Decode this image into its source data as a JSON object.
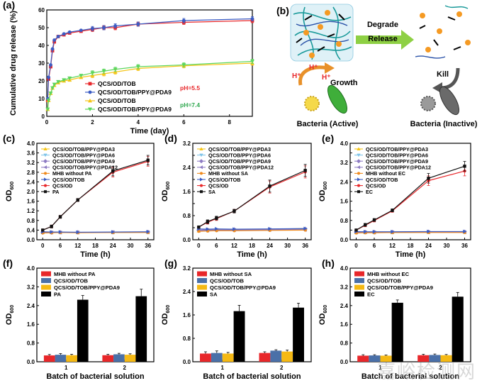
{
  "colors": {
    "red": "#e8272a",
    "blue": "#3b5cc4",
    "yellow": "#f5c518",
    "green": "#5cd65c",
    "orange": "#f08a1c",
    "purple": "#8e7cc3",
    "lightblue": "#7fc4e8",
    "black": "#111111",
    "bar_red": "#e8272a",
    "bar_blue": "#4a70a8",
    "bar_yellow": "#f5b914",
    "bar_black": "#000000",
    "phlabel_red": "#e8272a",
    "phlabel_green": "#2fa84f"
  },
  "schematic": {
    "panel_label": "(b)",
    "degrade": "Degrade",
    "release": "Release",
    "growth": "Growth",
    "kill": "Kill",
    "hplus_1": "H⁺",
    "hplus_2": "H⁺",
    "hplus_3": "H⁺",
    "bacteria_active": "Bacteria (Active)",
    "bacteria_inactive": "Bacteria (Inactive)"
  },
  "watermark": "嘉峪检测网",
  "chart_data": [
    {
      "id": "a",
      "panel_label": "(a)",
      "type": "line",
      "xlabel": "Time (day)",
      "ylabel": "Cumulative drug release (%)",
      "xlim": [
        0,
        9
      ],
      "ylim": [
        0,
        60
      ],
      "xticks": [
        0,
        2,
        4,
        6,
        8
      ],
      "yticks": [
        0,
        10,
        20,
        30,
        40,
        50,
        60
      ],
      "legend_position": "center-right",
      "annotations": [
        {
          "text": "pH=5.5",
          "color": "red"
        },
        {
          "text": "pH=7.4",
          "color": "green"
        }
      ],
      "series": [
        {
          "name": "QCS/OD/TOB",
          "color": "red",
          "marker": "square",
          "x": [
            0.04,
            0.08,
            0.17,
            0.25,
            0.33,
            0.5,
            0.75,
            1,
            1.5,
            2,
            2.5,
            3,
            4,
            6,
            9
          ],
          "y": [
            9,
            21,
            28,
            37,
            42,
            45,
            46,
            47,
            48,
            49,
            50,
            50,
            52,
            53,
            54
          ]
        },
        {
          "name": "QCS/OD/TOB/PPY@PDA9",
          "color": "blue",
          "marker": "circle",
          "x": [
            0.04,
            0.08,
            0.17,
            0.25,
            0.33,
            0.5,
            0.75,
            1,
            1.5,
            2,
            2.5,
            3,
            4,
            6,
            9
          ],
          "y": [
            10,
            22,
            29,
            38,
            43,
            45,
            46.5,
            47.5,
            48.5,
            49.5,
            50,
            51,
            52,
            54,
            55
          ]
        },
        {
          "name": "QCS/OD/TOB",
          "color": "yellow",
          "marker": "triangle-up",
          "x": [
            0.04,
            0.08,
            0.17,
            0.25,
            0.33,
            0.5,
            0.75,
            1,
            1.5,
            2,
            2.5,
            3,
            4,
            6,
            9
          ],
          "y": [
            4,
            9,
            13,
            16,
            17.5,
            19,
            20,
            20.5,
            22,
            23,
            24,
            25,
            27,
            28.5,
            30
          ]
        },
        {
          "name": "QCS/OD/TOB/PPY@PDA9",
          "color": "green",
          "marker": "triangle-down",
          "x": [
            0.04,
            0.08,
            0.17,
            0.25,
            0.33,
            0.5,
            0.75,
            1,
            1.5,
            2,
            2.5,
            3,
            4,
            6,
            9
          ],
          "y": [
            4,
            9,
            13,
            16,
            18,
            19.5,
            20.5,
            21.5,
            23,
            24.5,
            25.5,
            26.5,
            28,
            29,
            31
          ]
        }
      ]
    },
    {
      "id": "c",
      "panel_label": "(c)",
      "type": "line",
      "xlabel": "Time (h)",
      "ylabel": "OD",
      "ylabel_sub": "600",
      "xlim": [
        -2,
        38
      ],
      "ylim": [
        0,
        4.0
      ],
      "xticks": [
        0,
        6,
        12,
        18,
        24,
        30,
        36
      ],
      "yticks": [
        0.0,
        0.4,
        0.8,
        1.2,
        1.6,
        2.0,
        2.4,
        2.8,
        3.2,
        3.6,
        4.0
      ],
      "ytick_labels": [
        "0.0",
        "0.4",
        "0.8",
        "1.2",
        "1.6",
        "2.0",
        "2.4",
        "2.8",
        "3.2",
        "3.6",
        "4.0"
      ],
      "x": [
        0,
        3,
        6,
        12,
        24,
        36
      ],
      "series": [
        {
          "name": "QCS/OD/TOB/PPY@PDA3",
          "color": "yellow",
          "marker": "triangle-up",
          "y": [
            0.3,
            0.31,
            0.31,
            0.3,
            0.3,
            0.31
          ]
        },
        {
          "name": "QCS/OD/TOB/PPY@PDA6",
          "color": "lightblue",
          "marker": "triangle-down",
          "y": [
            0.29,
            0.3,
            0.3,
            0.3,
            0.31,
            0.31
          ]
        },
        {
          "name": "QCS/OD/TOB/PPY@PDA9",
          "color": "purple",
          "marker": "diamond",
          "y": [
            0.3,
            0.3,
            0.31,
            0.31,
            0.31,
            0.32
          ]
        },
        {
          "name": "QCS/OD/TOB/PPY@PDA12",
          "color": "purple",
          "marker": "triangle-left",
          "y": [
            0.31,
            0.3,
            0.3,
            0.3,
            0.31,
            0.31
          ]
        },
        {
          "name": "MHB without PA",
          "color": "orange",
          "marker": "circle",
          "y": [
            0.28,
            0.29,
            0.3,
            0.29,
            0.3,
            0.3
          ]
        },
        {
          "name": "QCS/OD/TOB",
          "color": "blue",
          "marker": "triangle-right",
          "y": [
            0.33,
            0.32,
            0.32,
            0.31,
            0.32,
            0.33
          ]
        },
        {
          "name": "QCS/OD",
          "color": "red",
          "marker": "circle",
          "y": [
            0.4,
            0.55,
            0.95,
            1.65,
            2.8,
            3.25
          ]
        },
        {
          "name": "PA",
          "color": "black",
          "marker": "square",
          "y": [
            0.4,
            0.55,
            0.95,
            1.65,
            2.85,
            3.3
          ]
        }
      ]
    },
    {
      "id": "d",
      "panel_label": "(d)",
      "type": "line",
      "xlabel": "Time (h)",
      "ylabel": "OD",
      "ylabel_sub": "600",
      "xlim": [
        -2,
        38
      ],
      "ylim": [
        0,
        3.2
      ],
      "xticks": [
        0,
        6,
        12,
        18,
        24,
        30,
        36
      ],
      "yticks": [
        0.0,
        0.4,
        0.8,
        1.2,
        1.6,
        2.0,
        2.4,
        2.8,
        3.2
      ],
      "ytick_labels": [
        "0.0",
        "",
        "0.8",
        "",
        "1.6",
        "",
        "2.4",
        "",
        "3.2"
      ],
      "x": [
        0,
        3,
        6,
        12,
        24,
        36
      ],
      "series": [
        {
          "name": "QCS/OD/TOB/PPY@PDA3",
          "color": "yellow",
          "marker": "triangle-up",
          "y": [
            0.3,
            0.33,
            0.34,
            0.34,
            0.35,
            0.37
          ]
        },
        {
          "name": "QCS/OD/TOB/PPY@PDA6",
          "color": "lightblue",
          "marker": "triangle-down",
          "y": [
            0.31,
            0.32,
            0.33,
            0.33,
            0.34,
            0.35
          ]
        },
        {
          "name": "QCS/OD/TOB/PPY@PDA9",
          "color": "purple",
          "marker": "diamond",
          "y": [
            0.32,
            0.33,
            0.33,
            0.34,
            0.34,
            0.36
          ]
        },
        {
          "name": "QCS/OD/TOB/PPY@PDA12",
          "color": "purple",
          "marker": "triangle-left",
          "y": [
            0.3,
            0.31,
            0.32,
            0.32,
            0.33,
            0.33
          ]
        },
        {
          "name": "MHB without SA",
          "color": "orange",
          "marker": "circle",
          "y": [
            0.28,
            0.29,
            0.3,
            0.3,
            0.31,
            0.32
          ]
        },
        {
          "name": "QCS/OD/TOB",
          "color": "blue",
          "marker": "triangle-right",
          "y": [
            0.36,
            0.35,
            0.36,
            0.35,
            0.36,
            0.37
          ]
        },
        {
          "name": "QCS/OD",
          "color": "red",
          "marker": "circle",
          "y": [
            0.42,
            0.58,
            0.7,
            0.95,
            1.75,
            2.25
          ]
        },
        {
          "name": "SA",
          "color": "black",
          "marker": "square",
          "y": [
            0.42,
            0.6,
            0.72,
            0.95,
            1.78,
            2.3
          ]
        }
      ]
    },
    {
      "id": "e",
      "panel_label": "(e)",
      "type": "line",
      "xlabel": "Time (h)",
      "ylabel": "OD",
      "ylabel_sub": "600",
      "xlim": [
        -2,
        38
      ],
      "ylim": [
        0,
        4.0
      ],
      "xticks": [
        0,
        6,
        12,
        18,
        24,
        30,
        36
      ],
      "yticks": [
        0.0,
        0.4,
        0.8,
        1.2,
        1.6,
        2.0,
        2.4,
        2.8,
        3.2,
        3.6,
        4.0
      ],
      "ytick_labels": [
        "0.0",
        "",
        "0.8",
        "",
        "1.6",
        "",
        "2.4",
        "",
        "3.2",
        "",
        "4.0"
      ],
      "x": [
        0,
        3,
        6,
        12,
        24,
        36
      ],
      "series": [
        {
          "name": "QCS/OD/TOB/PPY@PDA3",
          "color": "yellow",
          "marker": "triangle-up",
          "y": [
            0.3,
            0.3,
            0.31,
            0.3,
            0.31,
            0.32
          ]
        },
        {
          "name": "QCS/OD/TOB/PPY@PDA6",
          "color": "lightblue",
          "marker": "triangle-down",
          "y": [
            0.31,
            0.31,
            0.31,
            0.31,
            0.32,
            0.32
          ]
        },
        {
          "name": "QCS/OD/TOB/PPY@PDA9",
          "color": "purple",
          "marker": "diamond",
          "y": [
            0.32,
            0.32,
            0.32,
            0.32,
            0.33,
            0.33
          ]
        },
        {
          "name": "QCS/OD/TOB/PPY@PDA12",
          "color": "purple",
          "marker": "triangle-left",
          "y": [
            0.3,
            0.31,
            0.3,
            0.31,
            0.31,
            0.31
          ]
        },
        {
          "name": "MHB without EC",
          "color": "orange",
          "marker": "circle",
          "y": [
            0.28,
            0.29,
            0.29,
            0.3,
            0.3,
            0.3
          ]
        },
        {
          "name": "QCS/OD/TOB",
          "color": "blue",
          "marker": "triangle-right",
          "y": [
            0.34,
            0.33,
            0.33,
            0.33,
            0.34,
            0.34
          ]
        },
        {
          "name": "QCS/OD",
          "color": "red",
          "marker": "circle",
          "y": [
            0.4,
            0.6,
            0.8,
            1.2,
            2.45,
            2.85
          ]
        },
        {
          "name": "EC",
          "color": "black",
          "marker": "square",
          "y": [
            0.4,
            0.62,
            0.82,
            1.22,
            2.55,
            3.05
          ]
        }
      ]
    },
    {
      "id": "f",
      "panel_label": "(f)",
      "type": "bar",
      "xlabel": "Batch of bacterial solution",
      "ylabel": "OD",
      "ylabel_sub": "600",
      "categories": [
        "1",
        "2"
      ],
      "ylim": [
        0,
        4.0
      ],
      "yticks": [
        0.0,
        0.8,
        1.6,
        2.4,
        3.2,
        4.0
      ],
      "ytick_labels": [
        "0.0",
        "0.8",
        "1.6",
        "2.4",
        "3.2",
        "4.0"
      ],
      "series": [
        {
          "name": "MHB without PA",
          "color": "bar_red",
          "values": [
            0.27,
            0.28
          ],
          "errors": [
            0.04,
            0.04
          ]
        },
        {
          "name": "QCS/OD/TOB",
          "color": "bar_blue",
          "values": [
            0.3,
            0.32
          ],
          "errors": [
            0.05,
            0.04
          ]
        },
        {
          "name": "QCS/OD/TOB/PPY@PDA9",
          "color": "bar_yellow",
          "values": [
            0.28,
            0.3
          ],
          "errors": [
            0.04,
            0.04
          ]
        },
        {
          "name": "PA",
          "color": "bar_black",
          "values": [
            2.65,
            2.8
          ],
          "errors": [
            0.18,
            0.3
          ]
        }
      ]
    },
    {
      "id": "g",
      "panel_label": "(g)",
      "type": "bar",
      "xlabel": "Batch of bacterial solution",
      "ylabel": "OD",
      "ylabel_sub": "600",
      "categories": [
        "1",
        "2"
      ],
      "ylim": [
        0,
        3.2
      ],
      "yticks": [
        0.0,
        0.8,
        1.6,
        2.4,
        3.2
      ],
      "ytick_labels": [
        "0.0",
        "0.8",
        "1.6",
        "2.4",
        "3.2"
      ],
      "series": [
        {
          "name": "MHB without SA",
          "color": "bar_red",
          "values": [
            0.28,
            0.3
          ],
          "errors": [
            0.06,
            0.04
          ]
        },
        {
          "name": "QCS/OD/TOB",
          "color": "bar_blue",
          "values": [
            0.3,
            0.38
          ],
          "errors": [
            0.07,
            0.03
          ]
        },
        {
          "name": "QCS/OD/TOB/PPY@PDA9",
          "color": "bar_yellow",
          "values": [
            0.28,
            0.35
          ],
          "errors": [
            0.04,
            0.05
          ]
        },
        {
          "name": "SA",
          "color": "bar_black",
          "values": [
            1.73,
            1.85
          ],
          "errors": [
            0.2,
            0.15
          ]
        }
      ]
    },
    {
      "id": "h",
      "panel_label": "(h)",
      "type": "bar",
      "xlabel": "Batch of bacterial solution",
      "ylabel": "OD",
      "ylabel_sub": "600",
      "categories": [
        "1",
        "2"
      ],
      "ylim": [
        0,
        4.0
      ],
      "yticks": [
        0.0,
        0.8,
        1.6,
        2.4,
        3.2,
        4.0
      ],
      "ytick_labels": [
        "0.0",
        "0.8",
        "1.6",
        "2.4",
        "3.2",
        "4.0"
      ],
      "series": [
        {
          "name": "MHB without EC",
          "color": "bar_red",
          "values": [
            0.26,
            0.28
          ],
          "errors": [
            0.04,
            0.04
          ]
        },
        {
          "name": "QCS/OD/TOB",
          "color": "bar_blue",
          "values": [
            0.27,
            0.29
          ],
          "errors": [
            0.03,
            0.04
          ]
        },
        {
          "name": "QCS/OD/TOB/PPY@PDA9",
          "color": "bar_yellow",
          "values": [
            0.26,
            0.28
          ],
          "errors": [
            0.03,
            0.03
          ]
        },
        {
          "name": "EC",
          "color": "bar_black",
          "values": [
            2.52,
            2.78
          ],
          "errors": [
            0.12,
            0.18
          ]
        }
      ]
    }
  ]
}
